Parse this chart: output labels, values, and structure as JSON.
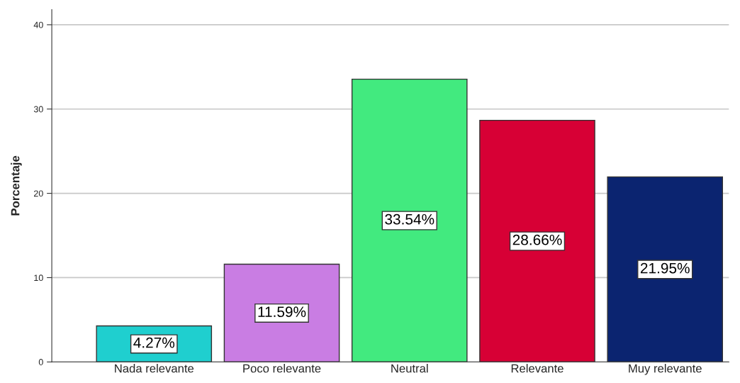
{
  "chart_data": {
    "type": "bar",
    "ylabel": "Porcentaje",
    "categories": [
      "Nada relevante",
      "Poco relevante",
      "Neutral",
      "Relevante",
      "Muy relevante"
    ],
    "values": [
      4.27,
      11.59,
      33.54,
      28.66,
      21.95
    ],
    "value_labels": [
      "4.27%",
      "11.59%",
      "33.54%",
      "28.66%",
      "21.95%"
    ],
    "colors": [
      "#1fcfcf",
      "#c97de3",
      "#42ea7f",
      "#d70035",
      "#0b2470"
    ],
    "ylim": [
      0,
      41.8
    ],
    "yticks": [
      0,
      10,
      20,
      30,
      40
    ],
    "grid": "y"
  }
}
